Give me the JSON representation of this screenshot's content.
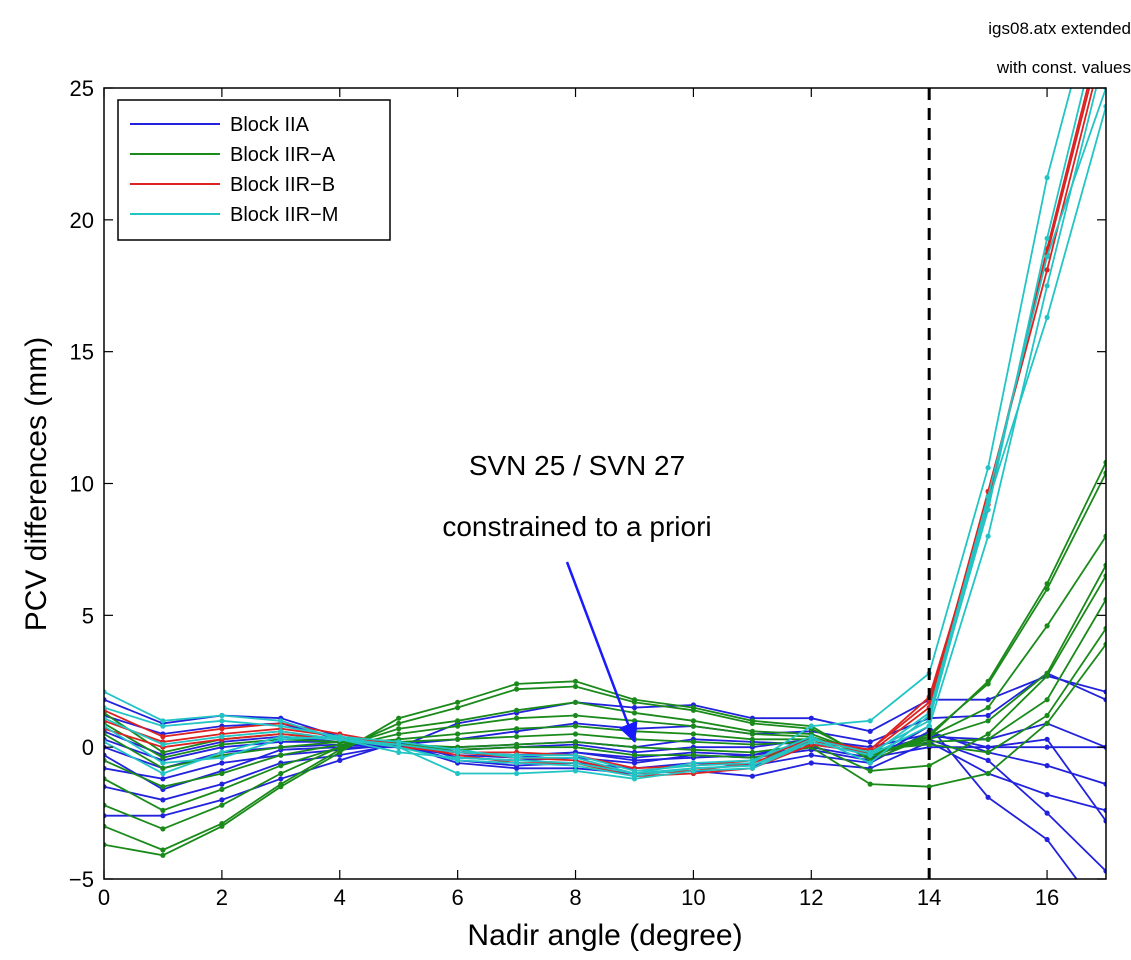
{
  "chart_data": {
    "type": "line",
    "xlabel": "Nadir angle (degree)",
    "ylabel": "PCV differences (mm)",
    "xlim": [
      0,
      17
    ],
    "ylim": [
      -5,
      25
    ],
    "xticks": [
      0,
      2,
      4,
      6,
      8,
      10,
      12,
      14,
      16
    ],
    "yticks": [
      -5,
      0,
      5,
      10,
      15,
      20,
      25
    ],
    "grid": false,
    "legend_position": "top-left",
    "legend": [
      {
        "label": "Block IIA",
        "color": "#2222dd"
      },
      {
        "label": "Block IIR−A",
        "color": "#1a8a1a"
      },
      {
        "label": "Block IIR−B",
        "color": "#dd2222"
      },
      {
        "label": "Block IIR−M",
        "color": "#22c4c4"
      }
    ],
    "x": [
      0,
      1,
      2,
      3,
      4,
      5,
      6,
      7,
      8,
      9,
      10,
      11,
      12,
      13,
      14,
      15,
      16,
      17
    ],
    "series": [
      {
        "group": "Block IIA",
        "color": "#2222dd",
        "values": [
          1.8,
          0.9,
          1.2,
          1.1,
          0.4,
          0.0,
          0.9,
          1.3,
          1.7,
          1.5,
          1.6,
          1.1,
          1.1,
          0.6,
          1.8,
          1.8,
          2.7,
          2.1
        ]
      },
      {
        "group": "Block IIA",
        "color": "#2222dd",
        "values": [
          1.2,
          0.5,
          0.8,
          0.9,
          0.3,
          0.1,
          0.3,
          0.6,
          0.9,
          0.7,
          0.8,
          0.5,
          0.6,
          0.2,
          1.1,
          1.2,
          2.8,
          1.8
        ]
      },
      {
        "group": "Block IIA",
        "color": "#2222dd",
        "values": [
          0.6,
          -0.3,
          0.2,
          0.4,
          0.2,
          0.0,
          0.0,
          0.1,
          0.2,
          0.0,
          0.3,
          0.2,
          0.1,
          -0.2,
          0.4,
          0.3,
          0.9,
          0.0
        ]
      },
      {
        "group": "Block IIA",
        "color": "#2222dd",
        "values": [
          0.0,
          -0.8,
          -0.2,
          0.0,
          0.1,
          0.0,
          -0.3,
          -0.4,
          -0.2,
          -0.4,
          -0.2,
          -0.3,
          0.0,
          -0.4,
          0.0,
          0.0,
          0.0,
          0.0
        ]
      },
      {
        "group": "Block IIA",
        "color": "#2222dd",
        "values": [
          -0.8,
          -1.2,
          -0.6,
          -0.3,
          -0.1,
          0.1,
          -0.5,
          -0.7,
          -0.6,
          -0.8,
          -0.6,
          -0.7,
          -0.3,
          -0.6,
          0.6,
          -0.2,
          -0.7,
          -1.4
        ]
      },
      {
        "group": "Block IIA",
        "color": "#2222dd",
        "values": [
          -1.5,
          -2.0,
          -1.4,
          -0.6,
          -0.3,
          0.1,
          -0.6,
          -0.8,
          -0.8,
          -1.0,
          -0.9,
          -1.1,
          -0.6,
          -0.8,
          0.2,
          -1.0,
          -1.8,
          -2.4
        ]
      },
      {
        "group": "Block IIA",
        "color": "#2222dd",
        "values": [
          -2.6,
          -2.6,
          -2.0,
          -1.2,
          -0.5,
          0.2,
          -0.4,
          -0.5,
          -0.4,
          -0.6,
          -0.3,
          -0.4,
          -0.1,
          -0.5,
          0.8,
          -1.9,
          -3.5,
          -6.5
        ]
      },
      {
        "group": "Block IIA",
        "color": "#2222dd",
        "values": [
          -0.3,
          -1.6,
          -0.9,
          -0.1,
          0.0,
          0.0,
          -0.2,
          -0.3,
          -0.2,
          -0.5,
          -0.4,
          -0.3,
          0.2,
          -0.3,
          0.3,
          -0.5,
          -2.5,
          -4.7
        ]
      },
      {
        "group": "Block IIA",
        "color": "#2222dd",
        "values": [
          0.3,
          -0.5,
          0.0,
          0.2,
          0.2,
          0.0,
          -0.1,
          0.0,
          0.1,
          -0.2,
          0.0,
          0.0,
          0.3,
          0.0,
          0.5,
          0.0,
          0.3,
          -2.8
        ]
      },
      {
        "group": "Block IIR−A",
        "color": "#1a8a1a",
        "values": [
          -3.7,
          -4.1,
          -3.0,
          -1.5,
          -0.2,
          1.1,
          1.7,
          2.4,
          2.5,
          1.8,
          1.5,
          1.0,
          0.8,
          -0.5,
          0.4,
          2.5,
          6.2,
          10.8
        ]
      },
      {
        "group": "Block IIR−A",
        "color": "#1a8a1a",
        "values": [
          -3.0,
          -3.9,
          -2.9,
          -1.4,
          -0.1,
          0.9,
          1.5,
          2.2,
          2.3,
          1.7,
          1.4,
          0.9,
          0.7,
          -0.4,
          0.5,
          2.4,
          6.0,
          10.4
        ]
      },
      {
        "group": "Block IIR−A",
        "color": "#1a8a1a",
        "values": [
          -2.2,
          -3.1,
          -2.2,
          -1.0,
          0.0,
          0.7,
          1.0,
          1.4,
          1.7,
          1.3,
          1.0,
          0.6,
          0.5,
          -0.3,
          0.4,
          1.5,
          4.6,
          8.0
        ]
      },
      {
        "group": "Block IIR−A",
        "color": "#1a8a1a",
        "values": [
          -1.2,
          -2.4,
          -1.6,
          -0.7,
          0.0,
          0.5,
          0.8,
          1.1,
          1.2,
          1.0,
          0.8,
          0.5,
          0.4,
          -0.3,
          0.3,
          1.0,
          2.8,
          6.9
        ]
      },
      {
        "group": "Block IIR−A",
        "color": "#1a8a1a",
        "values": [
          -0.5,
          -1.5,
          -1.0,
          -0.3,
          0.1,
          0.3,
          0.5,
          0.7,
          0.8,
          0.6,
          0.5,
          0.3,
          0.3,
          -0.2,
          0.2,
          0.3,
          1.8,
          5.6
        ]
      },
      {
        "group": "Block IIR−A",
        "color": "#1a8a1a",
        "values": [
          0.5,
          -0.8,
          -0.3,
          0.0,
          0.2,
          0.2,
          0.3,
          0.4,
          0.5,
          0.3,
          0.2,
          0.1,
          0.2,
          -0.1,
          0.1,
          -0.2,
          1.2,
          4.5
        ]
      },
      {
        "group": "Block IIR−A",
        "color": "#1a8a1a",
        "values": [
          1.3,
          -0.2,
          0.3,
          0.5,
          0.3,
          0.1,
          -0.1,
          0.0,
          0.0,
          -0.3,
          -0.3,
          -0.4,
          0.0,
          -1.4,
          -1.5,
          -1.0,
          0.9,
          3.9
        ]
      },
      {
        "group": "Block IIR−A",
        "color": "#1a8a1a",
        "values": [
          0.9,
          -0.4,
          0.1,
          0.3,
          0.2,
          0.1,
          0.0,
          0.1,
          0.2,
          0.0,
          -0.1,
          -0.2,
          0.1,
          -0.9,
          -0.7,
          0.5,
          2.7,
          6.5
        ]
      },
      {
        "group": "Block IIR−B",
        "color": "#dd2222",
        "values": [
          1.4,
          0.4,
          0.7,
          0.9,
          0.5,
          0.1,
          -0.2,
          -0.4,
          -0.5,
          -1.0,
          -0.9,
          -0.6,
          0.2,
          -0.1,
          1.7,
          9.5,
          18.7,
          27.5
        ]
      },
      {
        "group": "Block IIR−B",
        "color": "#dd2222",
        "values": [
          1.0,
          0.2,
          0.5,
          0.7,
          0.4,
          0.1,
          -0.3,
          -0.6,
          -0.6,
          -1.1,
          -1.0,
          -0.8,
          0.1,
          -0.2,
          1.5,
          9.7,
          18.1,
          27.0
        ]
      },
      {
        "group": "Block IIR−B",
        "color": "#dd2222",
        "values": [
          0.7,
          0.0,
          0.3,
          0.5,
          0.3,
          0.0,
          -0.2,
          -0.2,
          -0.3,
          -0.8,
          -0.7,
          -0.5,
          0.3,
          -0.1,
          1.9,
          9.2,
          18.9,
          27.8
        ]
      },
      {
        "group": "Block IIR−M",
        "color": "#22c4c4",
        "values": [
          2.1,
          1.0,
          1.2,
          1.0,
          0.3,
          0.1,
          -0.2,
          -0.3,
          -0.3,
          -0.9,
          -0.7,
          -0.6,
          0.8,
          1.0,
          2.8,
          10.6,
          21.6,
          30.0
        ]
      },
      {
        "group": "Block IIR−M",
        "color": "#22c4c4",
        "values": [
          1.5,
          0.8,
          1.0,
          0.8,
          0.4,
          0.2,
          -0.1,
          -0.4,
          -0.4,
          -1.0,
          -0.6,
          -0.5,
          0.4,
          -0.6,
          1.2,
          9.0,
          19.3,
          28.5
        ]
      },
      {
        "group": "Block IIR−M",
        "color": "#22c4c4",
        "values": [
          0.8,
          -0.6,
          -0.4,
          0.3,
          0.4,
          0.0,
          -1.0,
          -1.0,
          -0.9,
          -1.2,
          -0.9,
          -0.8,
          0.2,
          -0.3,
          0.8,
          8.0,
          17.5,
          26.5
        ]
      },
      {
        "group": "Block IIR−M",
        "color": "#22c4c4",
        "values": [
          0.2,
          -1.0,
          -0.2,
          0.4,
          0.3,
          -0.2,
          -0.4,
          -0.5,
          -0.6,
          -1.0,
          -0.8,
          -0.7,
          0.3,
          -0.2,
          1.0,
          9.3,
          16.3,
          24.3
        ]
      },
      {
        "group": "Block IIR−M",
        "color": "#22c4c4",
        "values": [
          1.1,
          0.1,
          0.4,
          0.6,
          0.3,
          0.0,
          -0.5,
          -0.6,
          -0.7,
          -1.1,
          -0.8,
          -0.7,
          0.2,
          -0.3,
          1.3,
          9.5,
          18.6,
          25.0
        ]
      }
    ],
    "annotations": [
      {
        "text": "SVN 25 / SVN 27",
        "target": [
          9,
          0
        ]
      },
      {
        "text": "constrained to a priori"
      }
    ],
    "vline": {
      "x": 14,
      "style": "dashed"
    },
    "corner_text": [
      "igs08.atx extended",
      "with const. values"
    ]
  }
}
